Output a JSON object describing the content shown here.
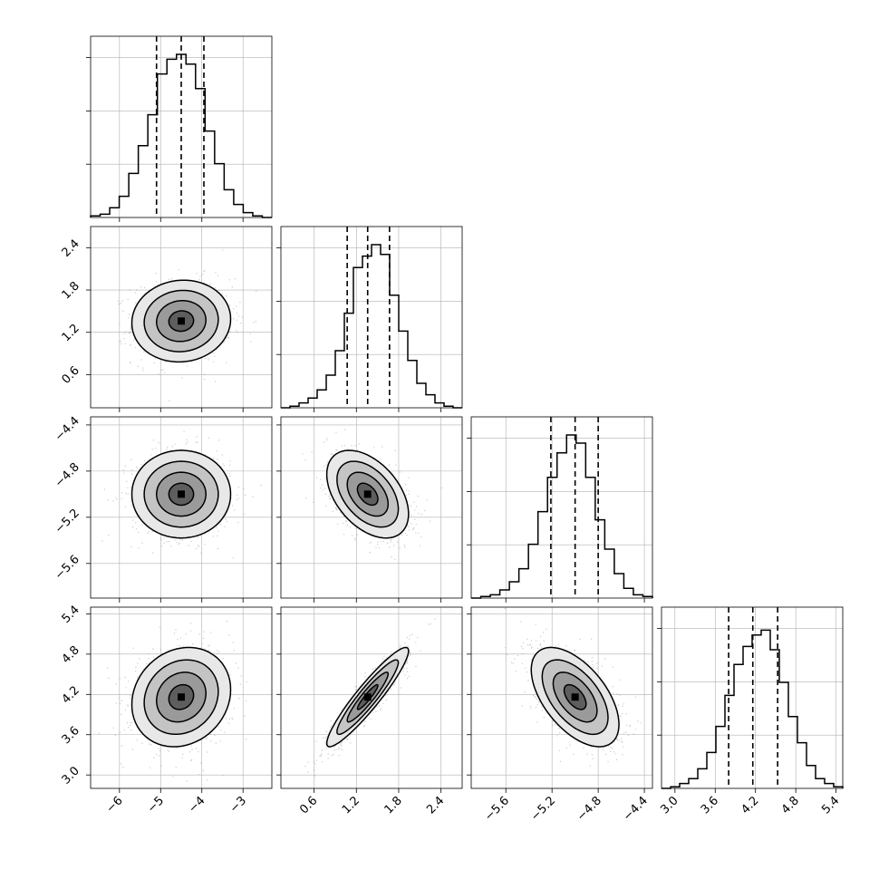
{
  "chart_data": {
    "type": "corner",
    "parameters": 4,
    "quantiles": [
      0.16,
      0.5,
      0.84
    ],
    "colors": {
      "line": "#000000",
      "grid": "#b0b0b0",
      "scatter": "#8c8c8c",
      "background": "#ffffff"
    },
    "grid": true,
    "axes": [
      {
        "index": 0,
        "range": [
          -6.7,
          -2.3
        ],
        "ticks": [
          -6,
          -5,
          -4,
          -3
        ],
        "tick_labels": [
          "−6",
          "−5",
          "−4",
          "−3"
        ],
        "quantile_values": [
          -5.1,
          -4.5,
          -3.95
        ]
      },
      {
        "index": 1,
        "range": [
          0.13,
          2.7
        ],
        "ticks": [
          0.6,
          1.2,
          1.8,
          2.4
        ],
        "tick_labels": [
          "0.6",
          "1.2",
          "1.8",
          "2.4"
        ],
        "quantile_values": [
          1.07,
          1.36,
          1.67
        ]
      },
      {
        "index": 2,
        "range": [
          -5.9,
          -4.33
        ],
        "ticks": [
          -5.6,
          -5.2,
          -4.8,
          -4.4
        ],
        "tick_labels": [
          "−5.6",
          "−5.2",
          "−4.8",
          "−4.4"
        ],
        "quantile_values": [
          -5.21,
          -5.0,
          -4.8
        ]
      },
      {
        "index": 3,
        "range": [
          2.8,
          5.5
        ],
        "ticks": [
          3.0,
          3.6,
          4.2,
          4.8,
          5.4
        ],
        "tick_labels": [
          "3.0",
          "3.6",
          "4.2",
          "4.8",
          "5.4"
        ],
        "quantile_values": [
          3.8,
          4.16,
          4.53
        ]
      }
    ],
    "histograms": [
      {
        "param": 0,
        "counts": [
          0.01,
          0.02,
          0.06,
          0.13,
          0.27,
          0.44,
          0.63,
          0.88,
          0.97,
          1.0,
          0.94,
          0.79,
          0.53,
          0.33,
          0.17,
          0.08,
          0.03,
          0.01,
          0.0
        ]
      },
      {
        "param": 1,
        "counts": [
          0.0,
          0.01,
          0.03,
          0.06,
          0.11,
          0.2,
          0.35,
          0.58,
          0.86,
          0.93,
          1.0,
          0.94,
          0.69,
          0.47,
          0.29,
          0.15,
          0.08,
          0.03,
          0.01,
          0.0
        ]
      },
      {
        "param": 2,
        "counts": [
          0.0,
          0.01,
          0.02,
          0.05,
          0.1,
          0.18,
          0.33,
          0.53,
          0.74,
          0.89,
          1.0,
          0.95,
          0.74,
          0.48,
          0.3,
          0.15,
          0.06,
          0.02,
          0.01
        ]
      },
      {
        "param": 3,
        "counts": [
          0.0,
          0.01,
          0.03,
          0.06,
          0.12,
          0.22,
          0.38,
          0.57,
          0.76,
          0.87,
          0.94,
          0.97,
          0.85,
          0.65,
          0.44,
          0.28,
          0.14,
          0.06,
          0.03,
          0.01
        ]
      }
    ],
    "pairs": [
      {
        "row": 1,
        "col": 0,
        "center": [
          -4.5,
          1.36
        ],
        "sd": [
          0.6,
          0.29
        ],
        "correlation": 0.05
      },
      {
        "row": 2,
        "col": 0,
        "center": [
          -4.5,
          -5.0
        ],
        "sd": [
          0.6,
          0.19
        ],
        "correlation": 0.0
      },
      {
        "row": 2,
        "col": 1,
        "center": [
          1.36,
          -5.0
        ],
        "sd": [
          0.29,
          0.19
        ],
        "correlation": -0.45
      },
      {
        "row": 3,
        "col": 0,
        "center": [
          -4.5,
          4.16
        ],
        "sd": [
          0.6,
          0.37
        ],
        "correlation": 0.15
      },
      {
        "row": 3,
        "col": 1,
        "center": [
          1.36,
          4.16
        ],
        "sd": [
          0.29,
          0.37
        ],
        "correlation": 0.93
      },
      {
        "row": 3,
        "col": 2,
        "center": [
          -5.0,
          4.16
        ],
        "sd": [
          0.19,
          0.37
        ],
        "correlation": -0.55
      }
    ],
    "contour_levels_sigma": [
      0.5,
      1.0,
      1.5,
      2.0
    ]
  }
}
